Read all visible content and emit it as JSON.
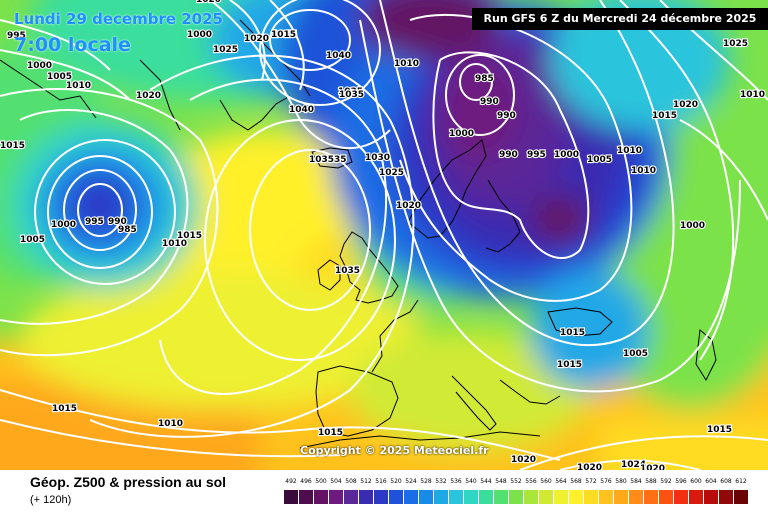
{
  "header": {
    "valid_date": "Lundi 29 decembre 2025",
    "local_time": "7:00 locale",
    "run_info": "Run GFS 6 Z du Mercredi 24 décembre 2025"
  },
  "copyright": "Copyright © 2025 Meteociel.fr",
  "footer": {
    "title": "Géop. Z500 & pression au sol",
    "subtitle": "(+ 120h)"
  },
  "legend": {
    "values": [
      "492",
      "496",
      "500",
      "504",
      "508",
      "512",
      "516",
      "520",
      "524",
      "528",
      "532",
      "536",
      "540",
      "544",
      "548",
      "552",
      "556",
      "560",
      "564",
      "568",
      "572",
      "576",
      "580",
      "584",
      "588",
      "592",
      "596",
      "600",
      "604",
      "608",
      "612"
    ],
    "colors": [
      "#3a0a3a",
      "#4f0d4f",
      "#641264",
      "#6e1a80",
      "#5a2898",
      "#3a2cb0",
      "#2b39c6",
      "#1f52d8",
      "#1a6de4",
      "#188ae8",
      "#20a8e6",
      "#2ac4dc",
      "#30d6c4",
      "#3ade9c",
      "#52e070",
      "#7ce24a",
      "#a8e63a",
      "#d0ea34",
      "#eef030",
      "#fff02a",
      "#ffdc24",
      "#ffc21e",
      "#ffa81a",
      "#ff8c16",
      "#ff7014",
      "#ff5212",
      "#f03010",
      "#d81a0c",
      "#b80c0a",
      "#900808",
      "#6a0404"
    ]
  },
  "isobar_labels": [
    {
      "text": "995"
    },
    {
      "text": "1000"
    },
    {
      "text": "1005"
    },
    {
      "text": "1010"
    },
    {
      "text": "1015"
    },
    {
      "text": "1020"
    },
    {
      "text": "1025"
    },
    {
      "text": "1020"
    },
    {
      "text": "1015"
    },
    {
      "text": "1040"
    },
    {
      "text": "1035"
    },
    {
      "text": "1010"
    },
    {
      "text": "985"
    },
    {
      "text": "990"
    },
    {
      "text": "990"
    },
    {
      "text": "1000"
    },
    {
      "text": "1000"
    },
    {
      "text": "990"
    },
    {
      "text": "995"
    },
    {
      "text": "1000"
    },
    {
      "text": "1005"
    },
    {
      "text": "1010"
    },
    {
      "text": "1010"
    },
    {
      "text": "1015"
    },
    {
      "text": "1020"
    },
    {
      "text": "1025"
    },
    {
      "text": "1040"
    },
    {
      "text": "103535"
    },
    {
      "text": "1030"
    },
    {
      "text": "1025"
    },
    {
      "text": "1020"
    },
    {
      "text": "1000"
    },
    {
      "text": "995"
    },
    {
      "text": "990"
    },
    {
      "text": "985"
    },
    {
      "text": "1005"
    },
    {
      "text": "1010"
    },
    {
      "text": "1015"
    },
    {
      "text": "1035"
    },
    {
      "text": "1015"
    },
    {
      "text": "1015"
    },
    {
      "text": "1005"
    },
    {
      "text": "1000"
    },
    {
      "text": "1015"
    },
    {
      "text": "1010"
    },
    {
      "text": "1015"
    },
    {
      "text": "1020"
    },
    {
      "text": "1020"
    },
    {
      "text": "1024"
    },
    {
      "text": "1020"
    },
    {
      "text": "1015"
    },
    {
      "text": "1035"
    },
    {
      "text": "1010"
    },
    {
      "text": "1015"
    },
    {
      "text": "1020"
    },
    {
      "text": "1000"
    }
  ]
}
